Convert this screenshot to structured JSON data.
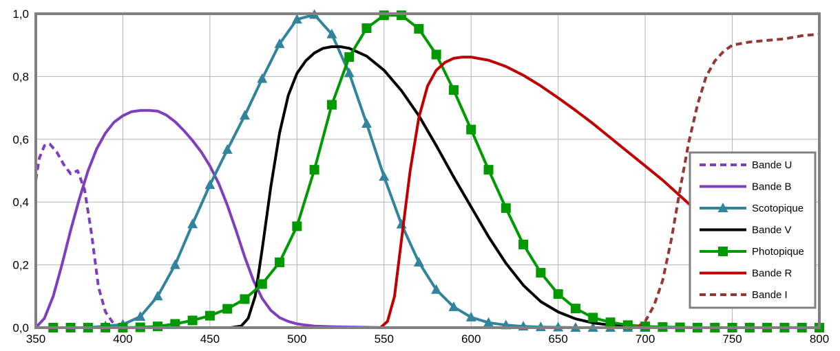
{
  "chart_data": {
    "type": "line",
    "title": "",
    "xlabel": "",
    "ylabel": "",
    "xlim": [
      350,
      800
    ],
    "ylim": [
      0,
      1
    ],
    "x_ticks": [
      350,
      400,
      450,
      500,
      550,
      600,
      650,
      700,
      750,
      800
    ],
    "x_tick_labels": [
      "350",
      "400",
      "450",
      "500",
      "550",
      "600",
      "650",
      "700",
      "750",
      "800"
    ],
    "y_ticks": [
      0,
      0.2,
      0.4,
      0.6,
      0.8,
      1.0
    ],
    "y_tick_labels": [
      "0,0",
      "0,2",
      "0,4",
      "0,6",
      "0,8",
      "1,0"
    ],
    "grid": true,
    "legend_position": "right",
    "series": [
      {
        "name": "Bande U",
        "color": "#7e3fbf",
        "style": "dashed",
        "marker": "none",
        "x": [
          350,
          352,
          355,
          358,
          362,
          366,
          370,
          374,
          378,
          382,
          386,
          390,
          395,
          400
        ],
        "y": [
          0.47,
          0.54,
          0.58,
          0.585,
          0.56,
          0.52,
          0.49,
          0.5,
          0.44,
          0.3,
          0.13,
          0.05,
          0.01,
          0.0
        ]
      },
      {
        "name": "Bande B",
        "color": "#7e3fbf",
        "style": "solid",
        "marker": "none",
        "x": [
          350,
          355,
          360,
          365,
          370,
          375,
          380,
          385,
          390,
          395,
          400,
          405,
          410,
          415,
          420,
          425,
          430,
          435,
          440,
          445,
          450,
          455,
          460,
          465,
          470,
          475,
          480,
          485,
          490,
          495,
          500,
          505,
          510,
          520,
          530,
          540,
          550,
          560,
          575
        ],
        "y": [
          0.0,
          0.03,
          0.1,
          0.2,
          0.31,
          0.41,
          0.5,
          0.57,
          0.62,
          0.655,
          0.675,
          0.688,
          0.692,
          0.692,
          0.69,
          0.677,
          0.656,
          0.628,
          0.596,
          0.56,
          0.515,
          0.46,
          0.39,
          0.31,
          0.225,
          0.15,
          0.093,
          0.055,
          0.032,
          0.02,
          0.012,
          0.008,
          0.005,
          0.003,
          0.002,
          0.001,
          0.0,
          0.0,
          0.0
        ]
      },
      {
        "name": "Scotopique",
        "color": "#31849b",
        "style": "solid",
        "marker": "triangle",
        "x": [
          380,
          390,
          400,
          410,
          420,
          430,
          440,
          450,
          460,
          470,
          480,
          490,
          500,
          510,
          520,
          530,
          540,
          550,
          560,
          570,
          580,
          590,
          600,
          610,
          620,
          630,
          640,
          650,
          660,
          670,
          680,
          690,
          700,
          710,
          720,
          730,
          740,
          750,
          760,
          770,
          780
        ],
        "y": [
          0.0,
          0.005,
          0.01,
          0.035,
          0.1,
          0.2,
          0.33,
          0.455,
          0.567,
          0.676,
          0.793,
          0.904,
          0.982,
          0.997,
          0.935,
          0.811,
          0.65,
          0.481,
          0.329,
          0.208,
          0.121,
          0.066,
          0.033,
          0.016,
          0.008,
          0.004,
          0.002,
          0.001,
          0.0,
          0.0,
          0.0,
          0.0,
          0.0,
          0.0,
          0.0,
          0.0,
          0.0,
          0.0,
          0.0,
          0.0,
          0.0
        ]
      },
      {
        "name": "Bande V",
        "color": "#000000",
        "style": "solid",
        "marker": "none",
        "x": [
          462,
          468,
          472,
          476,
          480,
          485,
          490,
          495,
          500,
          505,
          510,
          515,
          520,
          525,
          530,
          540,
          550,
          560,
          570,
          580,
          590,
          600,
          610,
          620,
          630,
          640,
          650,
          660,
          670,
          680,
          690,
          700
        ],
        "y": [
          0.0,
          0.005,
          0.03,
          0.1,
          0.25,
          0.45,
          0.62,
          0.74,
          0.81,
          0.85,
          0.875,
          0.89,
          0.895,
          0.895,
          0.89,
          0.865,
          0.82,
          0.755,
          0.675,
          0.58,
          0.48,
          0.385,
          0.29,
          0.205,
          0.135,
          0.083,
          0.05,
          0.028,
          0.015,
          0.008,
          0.003,
          0.0
        ]
      },
      {
        "name": "Photopique",
        "color": "#009900",
        "style": "solid",
        "marker": "square",
        "x": [
          360,
          370,
          380,
          390,
          400,
          410,
          420,
          430,
          440,
          450,
          460,
          470,
          480,
          490,
          500,
          510,
          520,
          530,
          540,
          550,
          560,
          570,
          580,
          590,
          600,
          610,
          620,
          630,
          640,
          650,
          660,
          670,
          680,
          690,
          700,
          710,
          720,
          730,
          740,
          750,
          760,
          770,
          780,
          790,
          800
        ],
        "y": [
          0.0,
          0.0,
          0.0,
          0.0,
          0.0,
          0.001,
          0.004,
          0.012,
          0.023,
          0.038,
          0.06,
          0.091,
          0.139,
          0.208,
          0.323,
          0.503,
          0.71,
          0.862,
          0.954,
          0.995,
          0.995,
          0.952,
          0.87,
          0.757,
          0.631,
          0.503,
          0.381,
          0.265,
          0.175,
          0.107,
          0.061,
          0.032,
          0.017,
          0.008,
          0.004,
          0.002,
          0.001,
          0.0,
          0.0,
          0.0,
          0.0,
          0.0,
          0.0,
          0.0,
          0.0
        ]
      },
      {
        "name": "Bande R",
        "color": "#c00000",
        "style": "solid",
        "marker": "none",
        "x": [
          548,
          552,
          556,
          560,
          565,
          570,
          575,
          580,
          585,
          590,
          595,
          600,
          610,
          620,
          630,
          640,
          650,
          660,
          670,
          680,
          690,
          700,
          710,
          720,
          730
        ],
        "y": [
          0.0,
          0.02,
          0.1,
          0.28,
          0.5,
          0.67,
          0.77,
          0.82,
          0.845,
          0.858,
          0.862,
          0.862,
          0.852,
          0.832,
          0.804,
          0.77,
          0.732,
          0.692,
          0.65,
          0.605,
          0.56,
          0.515,
          0.47,
          0.42,
          0.37
        ]
      },
      {
        "name": "Bande I",
        "color": "#953735",
        "style": "dashed",
        "marker": "none",
        "x": [
          695,
          700,
          705,
          710,
          715,
          720,
          725,
          730,
          735,
          740,
          745,
          750,
          760,
          770,
          780,
          790,
          800
        ],
        "y": [
          0.0,
          0.02,
          0.07,
          0.15,
          0.28,
          0.44,
          0.59,
          0.71,
          0.8,
          0.85,
          0.88,
          0.9,
          0.91,
          0.915,
          0.92,
          0.93,
          0.935
        ]
      }
    ]
  }
}
